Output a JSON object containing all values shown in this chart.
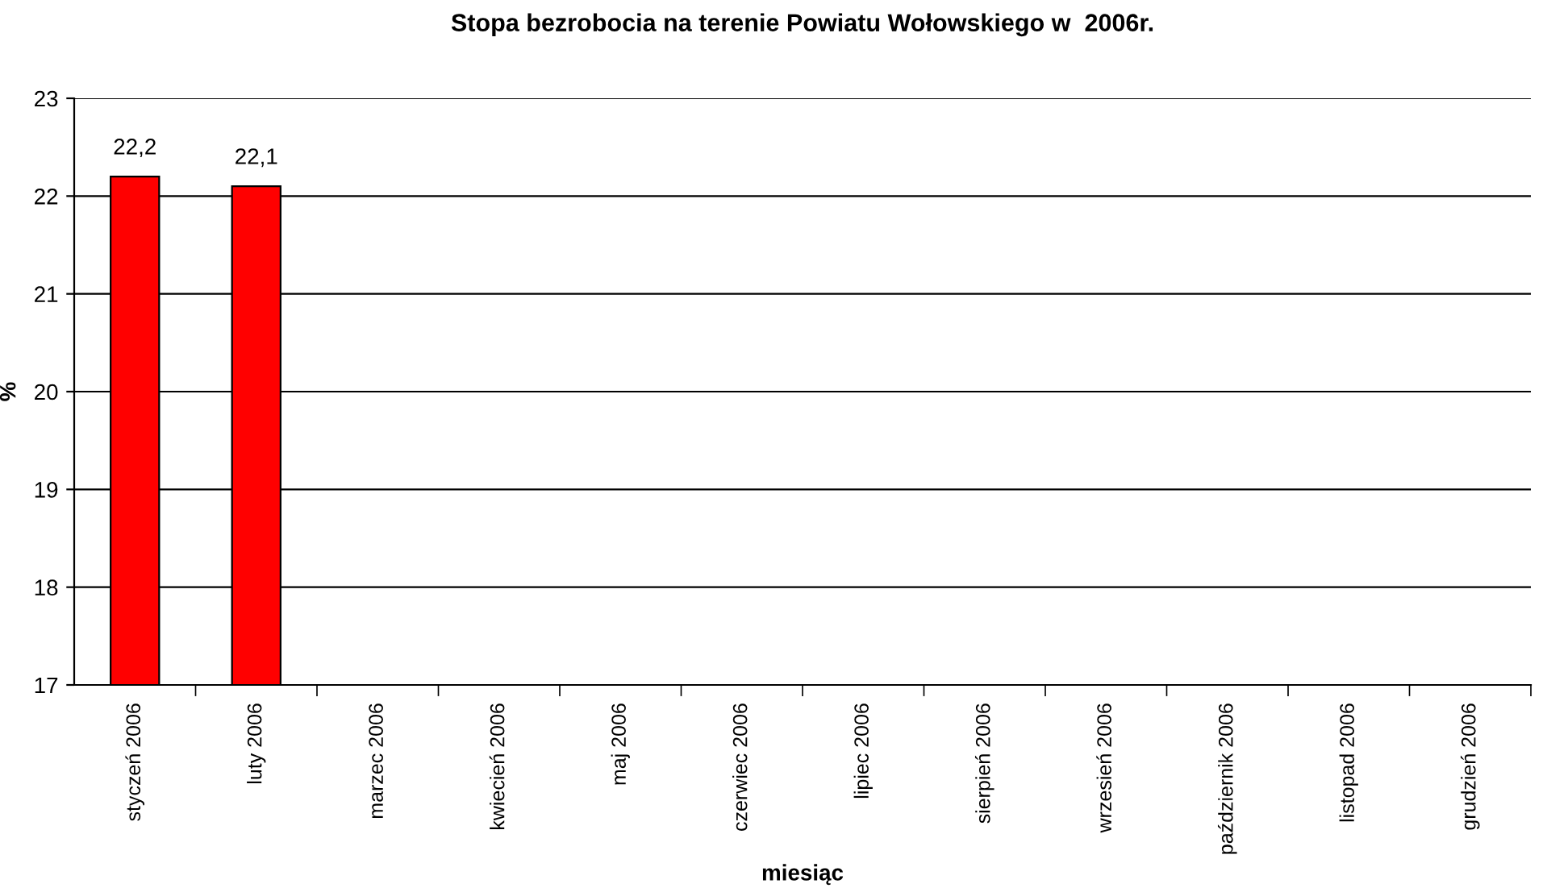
{
  "chart_data": {
    "type": "bar",
    "title": "Stopa bezrobocia na terenie Powiatu Wołowskiego w  2006r.",
    "xlabel": "miesiąc",
    "ylabel": "%",
    "categories": [
      "styczeń 2006",
      "luty 2006",
      "marzec 2006",
      "kwiecień 2006",
      "maj 2006",
      "czerwiec 2006",
      "lipiec 2006",
      "sierpień 2006",
      "wrzesień 2006",
      "październik 2006",
      "listopad 2006",
      "grudzień 2006"
    ],
    "values": [
      22.2,
      22.1,
      null,
      null,
      null,
      null,
      null,
      null,
      null,
      null,
      null,
      null
    ],
    "value_labels": [
      "22,2",
      "22,1",
      null,
      null,
      null,
      null,
      null,
      null,
      null,
      null,
      null,
      null
    ],
    "color": "#ff0000",
    "ylim": [
      17,
      23
    ],
    "yticks": [
      17,
      18,
      19,
      20,
      21,
      22,
      23
    ],
    "grid": "y",
    "legend": false
  }
}
